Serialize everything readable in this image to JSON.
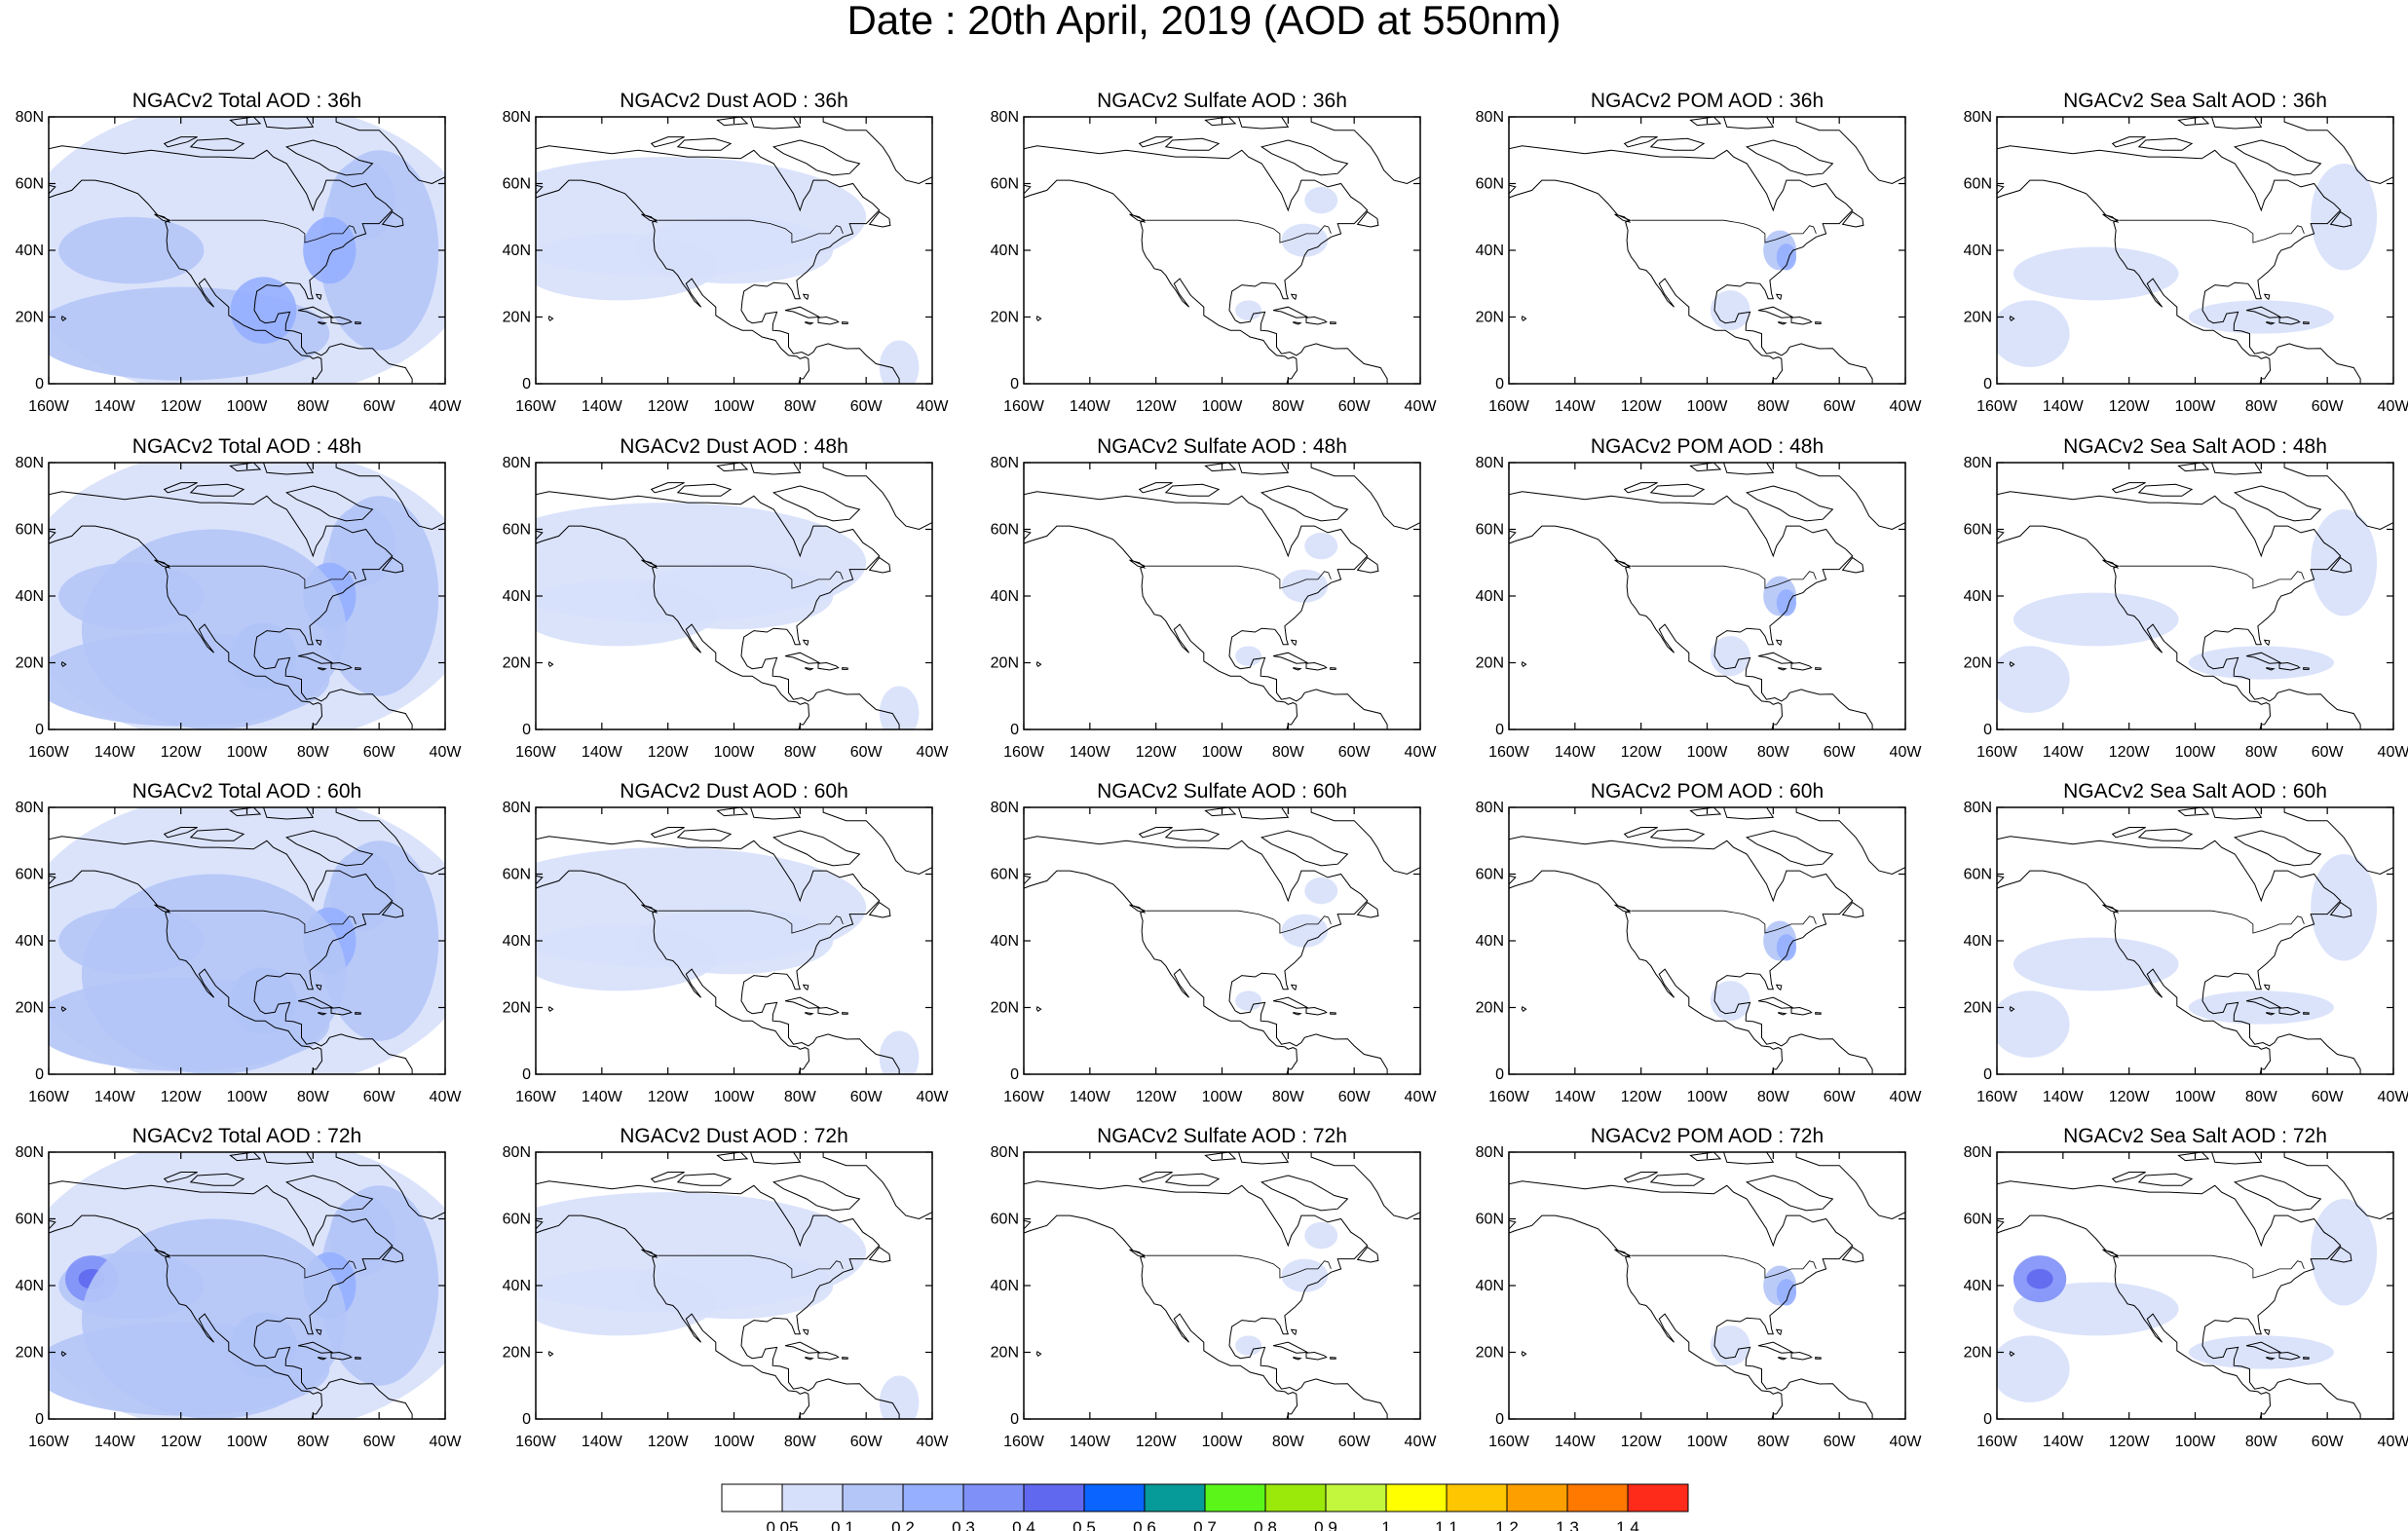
{
  "title": "Date : 20th April, 2019 (AOD at 550nm)",
  "rows": [
    {
      "panels": [
        "NGACv2 Total AOD : 36h",
        "NGACv2 Dust AOD : 36h",
        "NGACv2 Sulfate AOD : 36h",
        "NGACv2 POM AOD : 36h",
        "NGACv2 Sea Salt AOD : 36h"
      ]
    },
    {
      "panels": [
        "NGACv2 Total AOD : 48h",
        "NGACv2 Dust AOD : 48h",
        "NGACv2 Sulfate AOD : 48h",
        "NGACv2 POM AOD : 48h",
        "NGACv2 Sea Salt AOD : 48h"
      ]
    },
    {
      "panels": [
        "NGACv2 Total AOD : 60h",
        "NGACv2 Dust AOD : 60h",
        "NGACv2 Sulfate AOD : 60h",
        "NGACv2 POM AOD : 60h",
        "NGACv2 Sea Salt AOD : 60h"
      ]
    },
    {
      "panels": [
        "NGACv2 Total AOD : 72h",
        "NGACv2 Dust AOD : 72h",
        "NGACv2 Sulfate AOD : 72h",
        "NGACv2 POM AOD : 72h",
        "NGACv2 Sea Salt  AOD : 72h"
      ]
    }
  ],
  "lat_ticks": [
    "80N",
    "60N",
    "40N",
    "20N",
    "0"
  ],
  "lon_ticks": [
    "160W",
    "140W",
    "120W",
    "100W",
    "80W",
    "60W",
    "40W"
  ],
  "colorbar": {
    "colors": [
      "#ffffff",
      "#d7e0fb",
      "#b4c5f7",
      "#96afff",
      "#7f90f8",
      "#5f68ee",
      "#0a64ff",
      "#069a98",
      "#5bf51a",
      "#9be80b",
      "#c3f73e",
      "#ffff00",
      "#fec600",
      "#fe9f00",
      "#ff7800",
      "#ff2b1a"
    ],
    "labels": [
      "0.05",
      "0.1",
      "0.2",
      "0.3",
      "0.4",
      "0.5",
      "0.6",
      "0.7",
      "0.8",
      "0.9",
      "1",
      "1.1",
      "1.2",
      "1.3",
      "1.4"
    ]
  }
}
